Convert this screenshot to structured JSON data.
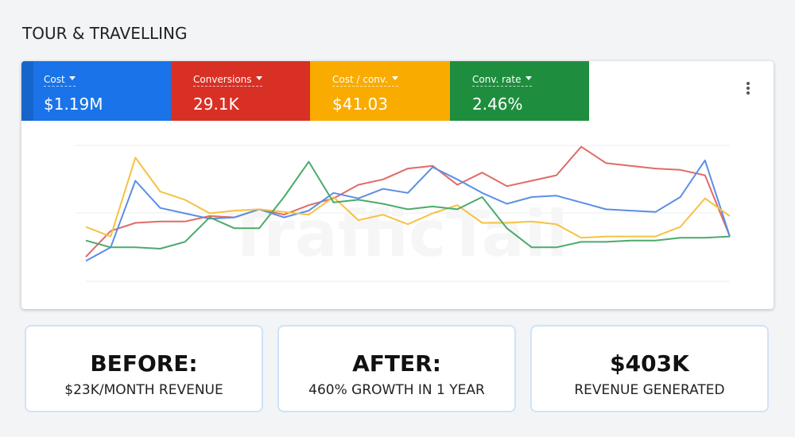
{
  "title": "TOUR & TRAVELLING",
  "metrics": [
    {
      "label": "Cost",
      "value": "$1.19M",
      "color": "#1a73e8"
    },
    {
      "label": "Conversions",
      "value": "29.1K",
      "color": "#d93025"
    },
    {
      "label": "Cost / conv.",
      "value": "$41.03",
      "color": "#f9ab00"
    },
    {
      "label": "Conv. rate",
      "value": "2.46%",
      "color": "#1e8e3e"
    }
  ],
  "chart_data": {
    "type": "line",
    "watermark": "TrafficTail",
    "ylim": [
      0,
      100
    ],
    "series": [
      {
        "color": "#e06b66",
        "values": [
          18,
          37,
          43,
          44,
          44,
          48,
          47,
          53,
          49,
          56,
          61,
          71,
          75,
          83,
          85,
          71,
          80,
          70,
          74,
          78,
          99,
          87,
          85,
          83,
          82,
          78,
          33
        ]
      },
      {
        "color": "#5b8ee6",
        "values": [
          15,
          25,
          74,
          54,
          50,
          46,
          47,
          53,
          47,
          52,
          65,
          61,
          68,
          65,
          84,
          75,
          65,
          57,
          62,
          63,
          58,
          53,
          52,
          51,
          62,
          89,
          33
        ]
      },
      {
        "color": "#f5c242",
        "values": [
          40,
          33,
          91,
          66,
          60,
          50,
          52,
          53,
          51,
          49,
          62,
          45,
          49,
          42,
          50,
          56,
          43,
          43,
          44,
          42,
          32,
          33,
          33,
          33,
          40,
          61,
          48
        ]
      },
      {
        "color": "#4caa6c",
        "values": [
          30,
          25,
          25,
          24,
          29,
          47,
          39,
          39,
          62,
          88,
          58,
          60,
          57,
          53,
          55,
          53,
          62,
          39,
          25,
          25,
          29,
          29,
          30,
          30,
          32,
          32,
          33
        ]
      }
    ]
  },
  "stats": [
    {
      "heading": "BEFORE:",
      "text": "$23K/MONTH REVENUE"
    },
    {
      "heading": "AFTER:",
      "text": "460% GROWTH IN 1 YEAR"
    },
    {
      "heading": "$403K",
      "text": "REVENUE GENERATED"
    }
  ]
}
